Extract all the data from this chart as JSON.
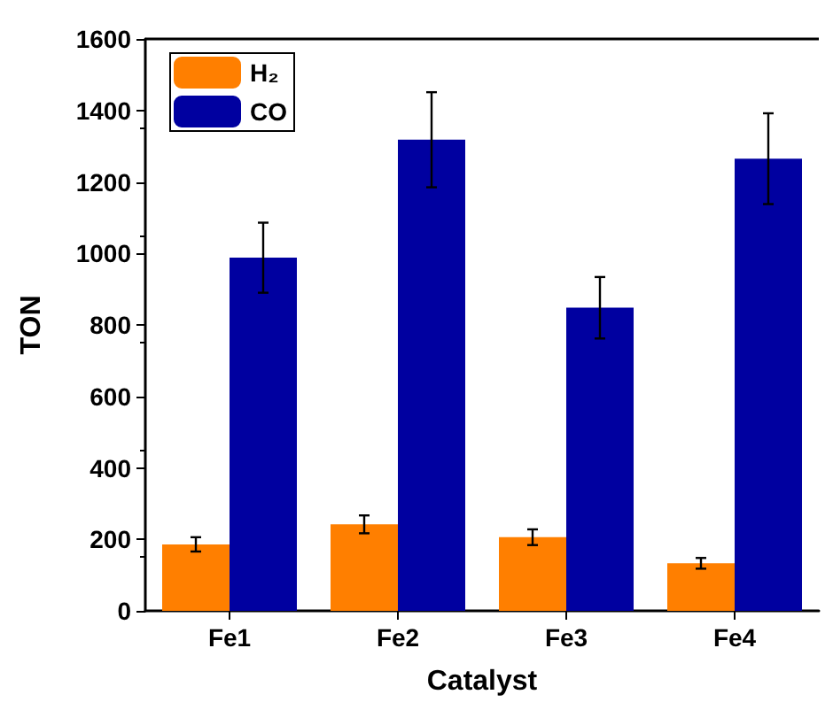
{
  "chart_data": {
    "type": "bar",
    "xlabel": "Catalyst",
    "ylabel": "TON",
    "categories": [
      "Fe1",
      "Fe2",
      "Fe3",
      "Fe4"
    ],
    "series": [
      {
        "name": "H₂",
        "color": "#ff7f00",
        "values": [
          186,
          242,
          206,
          133
        ],
        "errors": [
          20,
          25,
          22,
          15
        ]
      },
      {
        "name": "CO",
        "color": "#0000a0",
        "values": [
          988,
          1318,
          848,
          1265
        ],
        "errors": [
          98,
          133,
          86,
          127
        ]
      }
    ],
    "ylim": [
      0,
      1600
    ],
    "yticks": [
      0,
      200,
      400,
      600,
      800,
      1000,
      1200,
      1400,
      1600
    ],
    "grid": false,
    "legend": "top left"
  }
}
